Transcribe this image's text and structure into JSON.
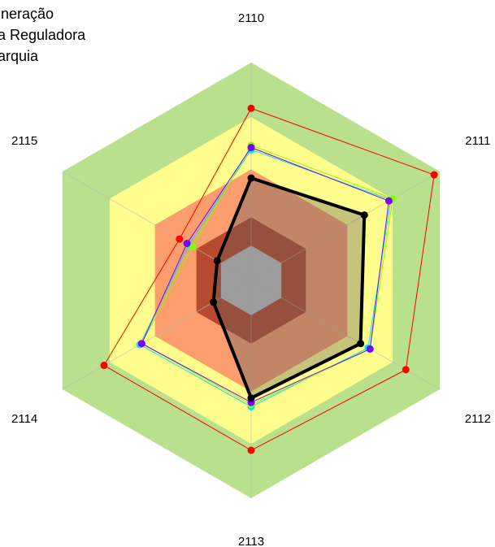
{
  "chart_data": {
    "type": "radar",
    "categories": [
      "2110",
      "2111",
      "2112",
      "2113",
      "2114",
      "2115"
    ],
    "legend_labels": [
      "ineração",
      "a Reguladora",
      "arquia"
    ],
    "rlim": [
      0,
      100
    ],
    "bands": [
      {
        "from": 75,
        "to": 100,
        "color": "#b9e08c"
      },
      {
        "from": 51,
        "to": 75,
        "color": "#fffd8c"
      },
      {
        "from": 29,
        "to": 51,
        "color": "#fb9d6d"
      },
      {
        "from": 16,
        "to": 29,
        "color": "#b84a30"
      },
      {
        "from": 0,
        "to": 16,
        "color": "#c0c0c0"
      }
    ],
    "series": [
      {
        "color": "#ff0000",
        "values": [
          79,
          97,
          82,
          78,
          78,
          38
        ]
      },
      {
        "color": "#00e5ee",
        "values": [
          60,
          74,
          62,
          58,
          59,
          33
        ]
      },
      {
        "color": "#80ff00",
        "values": [
          62,
          75,
          63,
          57,
          58,
          31
        ]
      },
      {
        "color": "#7b00ff",
        "values": [
          61,
          73,
          63,
          56,
          58,
          34
        ]
      },
      {
        "color": "#000000",
        "values": [
          47,
          60,
          58,
          54,
          20,
          18
        ],
        "fill": "rgba(90,90,90,0.35)",
        "width": 4
      }
    ]
  }
}
